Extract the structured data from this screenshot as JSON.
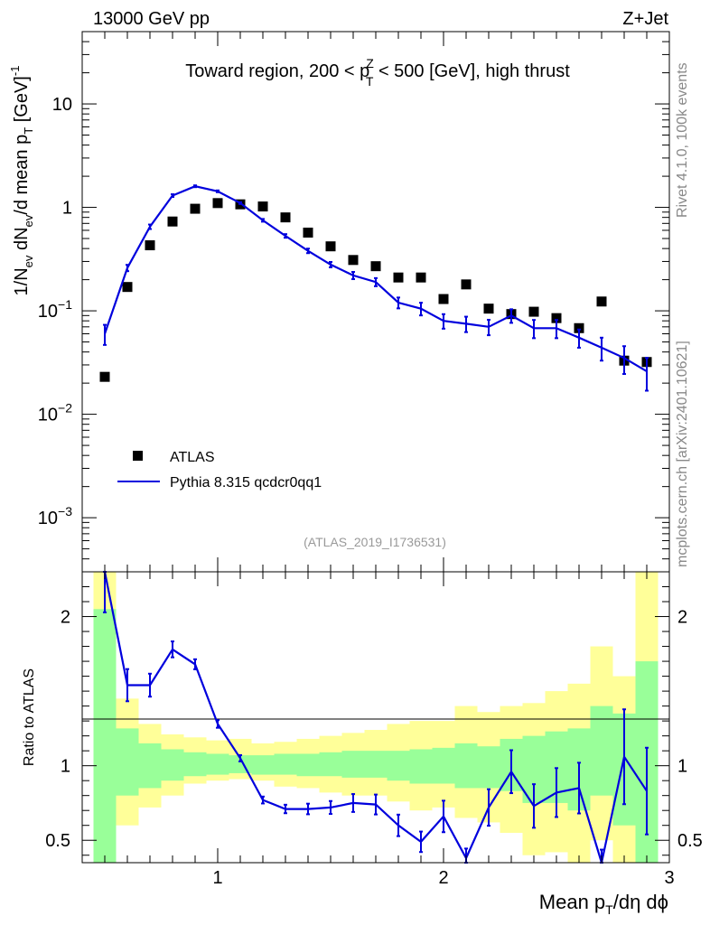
{
  "header": {
    "energy_label": "13000 GeV pp",
    "process_label": "Z+Jet"
  },
  "side_text": {
    "rivet": "Rivet 4.1.0,  100k events",
    "mcplots": "mcplots.cern.ch [arXiv:2401.10621]"
  },
  "analysis_id": "(ATLAS_2019_I1736531)",
  "chart_data": {
    "type": "scatter",
    "title": "Toward region, 200 < p_T^Z < 500 [GeV], high thrust",
    "title_parts": {
      "pre": "Toward region, 200 < p",
      "sub": "T",
      "sup": "Z",
      "post": " < 500 [GeV], high thrust"
    },
    "xlabel": "Mean p_T/dη dϕ",
    "xlabel_parts": {
      "main": "Mean p",
      "sub": "T",
      "post": "/dη dϕ"
    },
    "ylabel": "1/N_ev dN_ev/d mean p_T [GeV]^-1",
    "ylabel_parts": {
      "a": "1/N",
      "a_sub": "ev",
      "b": " dN",
      "b_sub": "ev",
      "c": "/d mean p",
      "c_sub": "T",
      "d": " [GeV]",
      "d_sup": "-1"
    },
    "xlim": [
      0.4,
      3.0
    ],
    "ylim": [
      0.0003,
      50
    ],
    "yscale": "log",
    "x_tick_labels": [
      "1",
      "2",
      "3"
    ],
    "y_tick_labels": [
      {
        "value": 10,
        "base": "10",
        "exp": ""
      },
      {
        "value": 1,
        "base": "1",
        "exp": ""
      },
      {
        "value": 0.1,
        "base": "10",
        "exp": "−1"
      },
      {
        "value": 0.01,
        "base": "10",
        "exp": "−2"
      },
      {
        "value": 0.001,
        "base": "10",
        "exp": "−3"
      }
    ],
    "legend": [
      {
        "name": "ATLAS",
        "marker": "square",
        "color": "#000000"
      },
      {
        "name": "Pythia 8.315 qcdcr0qq1",
        "marker": "line",
        "color": "#0000dd"
      }
    ],
    "legend_position": "lower-left",
    "x": [
      0.5,
      0.6,
      0.7,
      0.8,
      0.9,
      1.0,
      1.1,
      1.2,
      1.3,
      1.4,
      1.5,
      1.6,
      1.7,
      1.8,
      1.9,
      2.0,
      2.1,
      2.2,
      2.3,
      2.4,
      2.5,
      2.6,
      2.7,
      2.8,
      2.9
    ],
    "series": [
      {
        "name": "ATLAS",
        "values": [
          0.023,
          0.17,
          0.43,
          0.73,
          0.97,
          1.1,
          1.07,
          1.02,
          0.8,
          0.57,
          0.42,
          0.31,
          0.27,
          0.21,
          0.21,
          0.13,
          0.18,
          0.105,
          0.093,
          0.098,
          0.085,
          0.068,
          0.123,
          0.033,
          0.032
        ]
      },
      {
        "name": "Pythia 8.315 qcdcr0qq1",
        "values": [
          0.06,
          0.26,
          0.65,
          1.3,
          1.6,
          1.43,
          1.1,
          0.75,
          0.53,
          0.38,
          0.28,
          0.22,
          0.19,
          0.12,
          0.105,
          0.08,
          0.075,
          0.07,
          0.09,
          0.068,
          0.068,
          0.055,
          0.044,
          0.035,
          0.026
        ],
        "rel_err": [
          0.22,
          0.07,
          0.05,
          0.03,
          0.02,
          0.02,
          0.02,
          0.03,
          0.04,
          0.05,
          0.06,
          0.08,
          0.09,
          0.12,
          0.14,
          0.16,
          0.17,
          0.17,
          0.15,
          0.2,
          0.2,
          0.2,
          0.25,
          0.3,
          0.35
        ]
      }
    ],
    "ratio": {
      "ylabel": "Ratio to ATLAS",
      "ylim": [
        0.35,
        2.3
      ],
      "y_tick_labels": [
        {
          "value": 2,
          "label": "2"
        },
        {
          "value": 1,
          "label": "1"
        },
        {
          "value": 0.5,
          "label": "0.5"
        }
      ],
      "x_edges": [
        0.45,
        0.55,
        0.65,
        0.75,
        0.85,
        0.95,
        1.05,
        1.15,
        1.25,
        1.35,
        1.45,
        1.55,
        1.65,
        1.75,
        1.85,
        1.95,
        2.05,
        2.15,
        2.25,
        2.35,
        2.45,
        2.55,
        2.65,
        2.75,
        2.85,
        2.95
      ],
      "band_outer": [
        [
          0.35,
          2.35
        ],
        [
          0.6,
          1.45
        ],
        [
          0.72,
          1.28
        ],
        [
          0.8,
          1.21
        ],
        [
          0.88,
          1.19
        ],
        [
          0.9,
          1.17
        ],
        [
          0.91,
          1.18
        ],
        [
          0.9,
          1.15
        ],
        [
          0.86,
          1.16
        ],
        [
          0.85,
          1.18
        ],
        [
          0.82,
          1.2
        ],
        [
          0.8,
          1.22
        ],
        [
          0.8,
          1.24
        ],
        [
          0.76,
          1.28
        ],
        [
          0.7,
          1.3
        ],
        [
          0.72,
          1.3
        ],
        [
          0.65,
          1.4
        ],
        [
          0.62,
          1.36
        ],
        [
          0.55,
          1.4
        ],
        [
          0.4,
          1.42
        ],
        [
          0.42,
          1.5
        ],
        [
          0.35,
          1.55
        ],
        [
          0.5,
          1.8
        ],
        [
          0.35,
          1.6
        ],
        [
          0.35,
          2.35
        ]
      ],
      "band_inner": [
        [
          0.35,
          2.05
        ],
        [
          0.8,
          1.25
        ],
        [
          0.85,
          1.15
        ],
        [
          0.9,
          1.11
        ],
        [
          0.93,
          1.09
        ],
        [
          0.94,
          1.08
        ],
        [
          0.95,
          1.07
        ],
        [
          0.94,
          1.07
        ],
        [
          0.94,
          1.08
        ],
        [
          0.93,
          1.08
        ],
        [
          0.93,
          1.09
        ],
        [
          0.92,
          1.1
        ],
        [
          0.92,
          1.1
        ],
        [
          0.9,
          1.1
        ],
        [
          0.88,
          1.11
        ],
        [
          0.88,
          1.12
        ],
        [
          0.85,
          1.15
        ],
        [
          0.85,
          1.13
        ],
        [
          0.83,
          1.18
        ],
        [
          0.75,
          1.2
        ],
        [
          0.75,
          1.23
        ],
        [
          0.7,
          1.25
        ],
        [
          0.8,
          1.4
        ],
        [
          0.6,
          1.35
        ],
        [
          0.35,
          1.7
        ]
      ],
      "mc_values": [
        2.6,
        1.54,
        1.54,
        1.78,
        1.68,
        1.28,
        1.05,
        0.77,
        0.71,
        0.71,
        0.72,
        0.75,
        0.74,
        0.6,
        0.49,
        0.66,
        0.38,
        0.72,
        0.96,
        0.73,
        0.82,
        0.85,
        0.35,
        1.06,
        0.83
      ],
      "mc_rel_err": [
        0.22,
        0.07,
        0.05,
        0.03,
        0.02,
        0.02,
        0.02,
        0.03,
        0.04,
        0.05,
        0.06,
        0.08,
        0.09,
        0.12,
        0.14,
        0.16,
        0.17,
        0.17,
        0.15,
        0.2,
        0.2,
        0.2,
        0.25,
        0.3,
        0.35
      ]
    }
  }
}
